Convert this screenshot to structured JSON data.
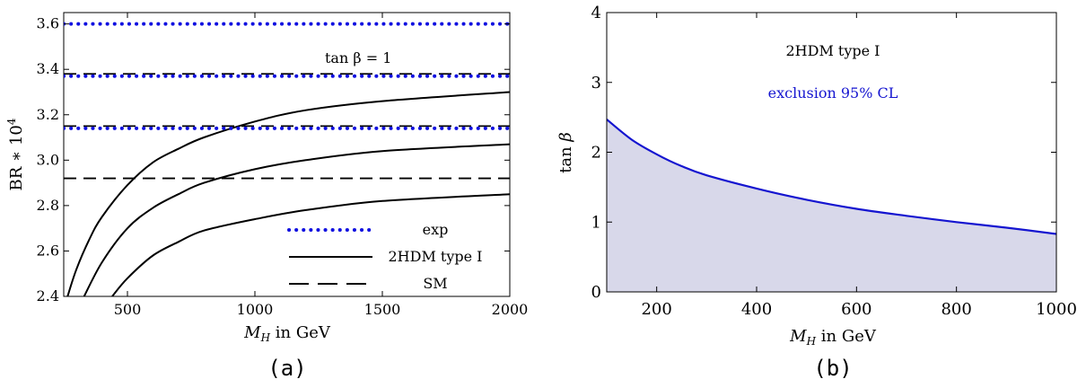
{
  "panels": [
    {
      "label": "(a)"
    },
    {
      "label": "(b)"
    }
  ],
  "chart_data": [
    {
      "type": "line",
      "xlabel": "M_H in GeV",
      "ylabel": "BR * 10^4",
      "xlim": [
        250,
        2000
      ],
      "ylim": [
        2.4,
        3.65
      ],
      "xticks": [
        500,
        1000,
        1500,
        2000
      ],
      "yticks": [
        2.4,
        2.6,
        2.8,
        3.0,
        3.2,
        3.4,
        3.6
      ],
      "annotation": "tan β = 1",
      "legend": {
        "placement": "bottom-right",
        "entries": [
          {
            "label": "exp",
            "style": "dotted",
            "color": "#1010e0"
          },
          {
            "label": "2HDM type I",
            "style": "solid",
            "color": "#000000"
          },
          {
            "label": "SM",
            "style": "dashed",
            "color": "#000000"
          }
        ]
      },
      "series": [
        {
          "kind": "exp",
          "style": "dotted",
          "color": "#1010e0",
          "y_const": 3.6
        },
        {
          "kind": "exp",
          "style": "dotted",
          "color": "#1010e0",
          "y_const": 3.37
        },
        {
          "kind": "exp",
          "style": "dotted",
          "color": "#1010e0",
          "y_const": 3.14
        },
        {
          "kind": "SM",
          "style": "dashed",
          "color": "#000000",
          "y_const": 3.38
        },
        {
          "kind": "SM",
          "style": "dashed",
          "color": "#000000",
          "y_const": 3.15
        },
        {
          "kind": "SM",
          "style": "dashed",
          "color": "#000000",
          "y_const": 2.92
        },
        {
          "kind": "2HDM",
          "style": "solid",
          "color": "#000000",
          "x": [
            265,
            300,
            350,
            400,
            500,
            600,
            700,
            800,
            1000,
            1200,
            1500,
            2000
          ],
          "y": [
            2.4,
            2.52,
            2.65,
            2.75,
            2.89,
            2.99,
            3.05,
            3.1,
            3.17,
            3.22,
            3.26,
            3.3
          ]
        },
        {
          "kind": "2HDM",
          "style": "solid",
          "color": "#000000",
          "x": [
            330,
            400,
            500,
            600,
            700,
            800,
            1000,
            1200,
            1500,
            2000
          ],
          "y": [
            2.4,
            2.55,
            2.7,
            2.79,
            2.85,
            2.9,
            2.96,
            3.0,
            3.04,
            3.07
          ]
        },
        {
          "kind": "2HDM",
          "style": "solid",
          "color": "#000000",
          "x": [
            440,
            500,
            600,
            700,
            800,
            1000,
            1200,
            1500,
            2000
          ],
          "y": [
            2.4,
            2.48,
            2.58,
            2.64,
            2.69,
            2.74,
            2.78,
            2.82,
            2.85
          ]
        }
      ]
    },
    {
      "type": "area",
      "xlabel": "M_H in GeV",
      "ylabel": "tan β",
      "xlim": [
        100,
        1000
      ],
      "ylim": [
        0,
        4
      ],
      "xticks": [
        200,
        400,
        600,
        800,
        1000
      ],
      "yticks": [
        0,
        1,
        2,
        3,
        4
      ],
      "annotations": [
        {
          "text": "2HDM type I",
          "color": "#000000"
        },
        {
          "text": "exclusion 95% CL",
          "color": "#1515d0"
        }
      ],
      "line_color": "#1515d0",
      "fill_color": "#d8d8ea",
      "x": [
        100,
        150,
        200,
        250,
        300,
        400,
        500,
        600,
        700,
        800,
        900,
        1000
      ],
      "y": [
        2.47,
        2.18,
        1.97,
        1.8,
        1.67,
        1.48,
        1.32,
        1.19,
        1.09,
        1.0,
        0.92,
        0.83
      ]
    }
  ]
}
